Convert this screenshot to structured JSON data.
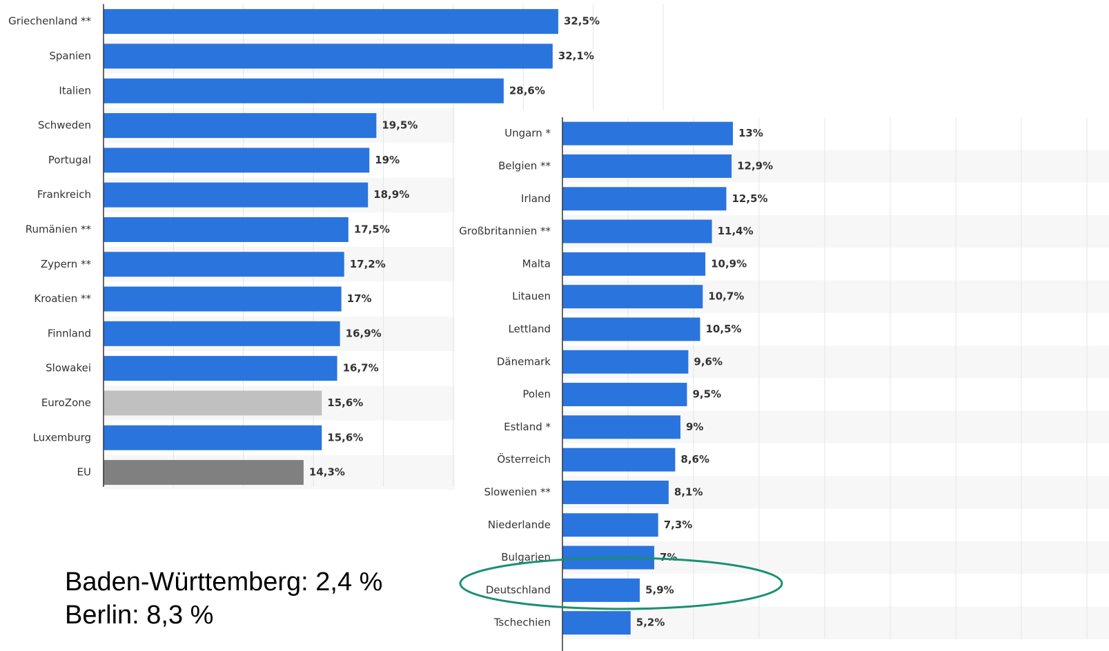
{
  "chart_data": [
    {
      "type": "bar",
      "orientation": "horizontal",
      "categories": [
        "Griechenland **",
        "Spanien",
        "Italien",
        "Schweden",
        "Portugal",
        "Frankreich",
        "Rumänien **",
        "Zypern **",
        "Kroatien **",
        "Finnland",
        "Slowakei",
        "EuroZone",
        "Luxemburg",
        "EU"
      ],
      "values": [
        32.5,
        32.1,
        28.6,
        19.5,
        19,
        18.9,
        17.5,
        17.2,
        17,
        16.9,
        16.7,
        15.6,
        15.6,
        14.3
      ],
      "value_labels": [
        "32,5%",
        "32,1%",
        "28,6%",
        "19,5%",
        "19%",
        "18,9%",
        "17,5%",
        "17,2%",
        "17%",
        "16,9%",
        "16,7%",
        "15,6%",
        "15,6%",
        "14,3%"
      ],
      "colors": [
        "#2a74de",
        "#2a74de",
        "#2a74de",
        "#2a74de",
        "#2a74de",
        "#2a74de",
        "#2a74de",
        "#2a74de",
        "#2a74de",
        "#2a74de",
        "#2a74de",
        "#c0c0c0",
        "#2a74de",
        "#808080"
      ],
      "xlim": [
        0,
        40
      ],
      "xticks": [
        0,
        5,
        10,
        15,
        20,
        25,
        30,
        35,
        40
      ],
      "grid": true
    },
    {
      "type": "bar",
      "orientation": "horizontal",
      "categories": [
        "Ungarn *",
        "Belgien **",
        "Irland",
        "Großbritannien **",
        "Malta",
        "Litauen",
        "Lettland",
        "Dänemark",
        "Polen",
        "Estland *",
        "Österreich",
        "Slowenien **",
        "Niederlande",
        "Bulgarien",
        "Deutschland",
        "Tschechien"
      ],
      "values": [
        13,
        12.9,
        12.5,
        11.4,
        10.9,
        10.7,
        10.5,
        9.6,
        9.5,
        9,
        8.6,
        8.1,
        7.3,
        7,
        5.9,
        5.2
      ],
      "value_labels": [
        "13%",
        "12,9%",
        "12,5%",
        "11,4%",
        "10,9%",
        "10,7%",
        "10,5%",
        "9,6%",
        "9,5%",
        "9%",
        "8,6%",
        "8,1%",
        "7,3%",
        "7%",
        "5,9%",
        "5,2%"
      ],
      "color": "#2a74de",
      "xlim": [
        0,
        40
      ],
      "xticks": [
        0,
        5,
        10,
        15,
        20,
        25,
        30,
        35,
        40
      ],
      "grid": true
    }
  ],
  "annotations": [
    "Baden-Württemberg: 2,4 %",
    "Berlin: 8,3 %"
  ]
}
